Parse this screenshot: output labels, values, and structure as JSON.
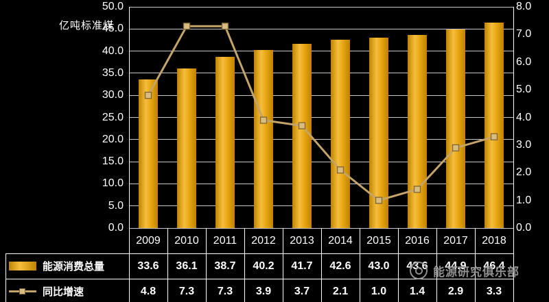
{
  "chart": {
    "watermark_text": "能源研究俱乐部",
    "colors": {
      "background": "#000000",
      "text": "#FFFFFF",
      "axis": "#FFFFFF",
      "grid": "#C8C8C8",
      "table_border": "#FFFFFF",
      "bar": "#E9A714",
      "bar_light": "#F6BE3E",
      "bar_dark": "#C08300",
      "line": "#C4A469",
      "marker_fill": "#D8BC80",
      "marker_border": "#7E6534",
      "watermark": "#9C9C9C"
    }
  },
  "chart_data": {
    "type": "combo-bar-line",
    "categories": [
      "2009",
      "2010",
      "2011",
      "2012",
      "2013",
      "2014",
      "2015",
      "2016",
      "2017",
      "2018"
    ],
    "series": [
      {
        "name": "能源消费总量",
        "type": "bar",
        "axis": "left",
        "values": [
          33.6,
          36.1,
          38.7,
          40.2,
          41.7,
          42.6,
          43.0,
          43.6,
          44.9,
          46.4
        ]
      },
      {
        "name": "同比增速",
        "type": "line",
        "axis": "right",
        "values": [
          4.8,
          7.3,
          7.3,
          3.9,
          3.7,
          2.1,
          1.0,
          1.4,
          2.9,
          3.3
        ]
      }
    ],
    "left_axis": {
      "title": "亿吨标准煤",
      "min": 0,
      "max": 50,
      "step": 5
    },
    "right_axis": {
      "min": 0,
      "max": 8,
      "step": 1
    },
    "grid": true,
    "legend_position": "bottom-left-table",
    "table_legend": [
      "能源消费总量",
      "同比增速"
    ]
  }
}
